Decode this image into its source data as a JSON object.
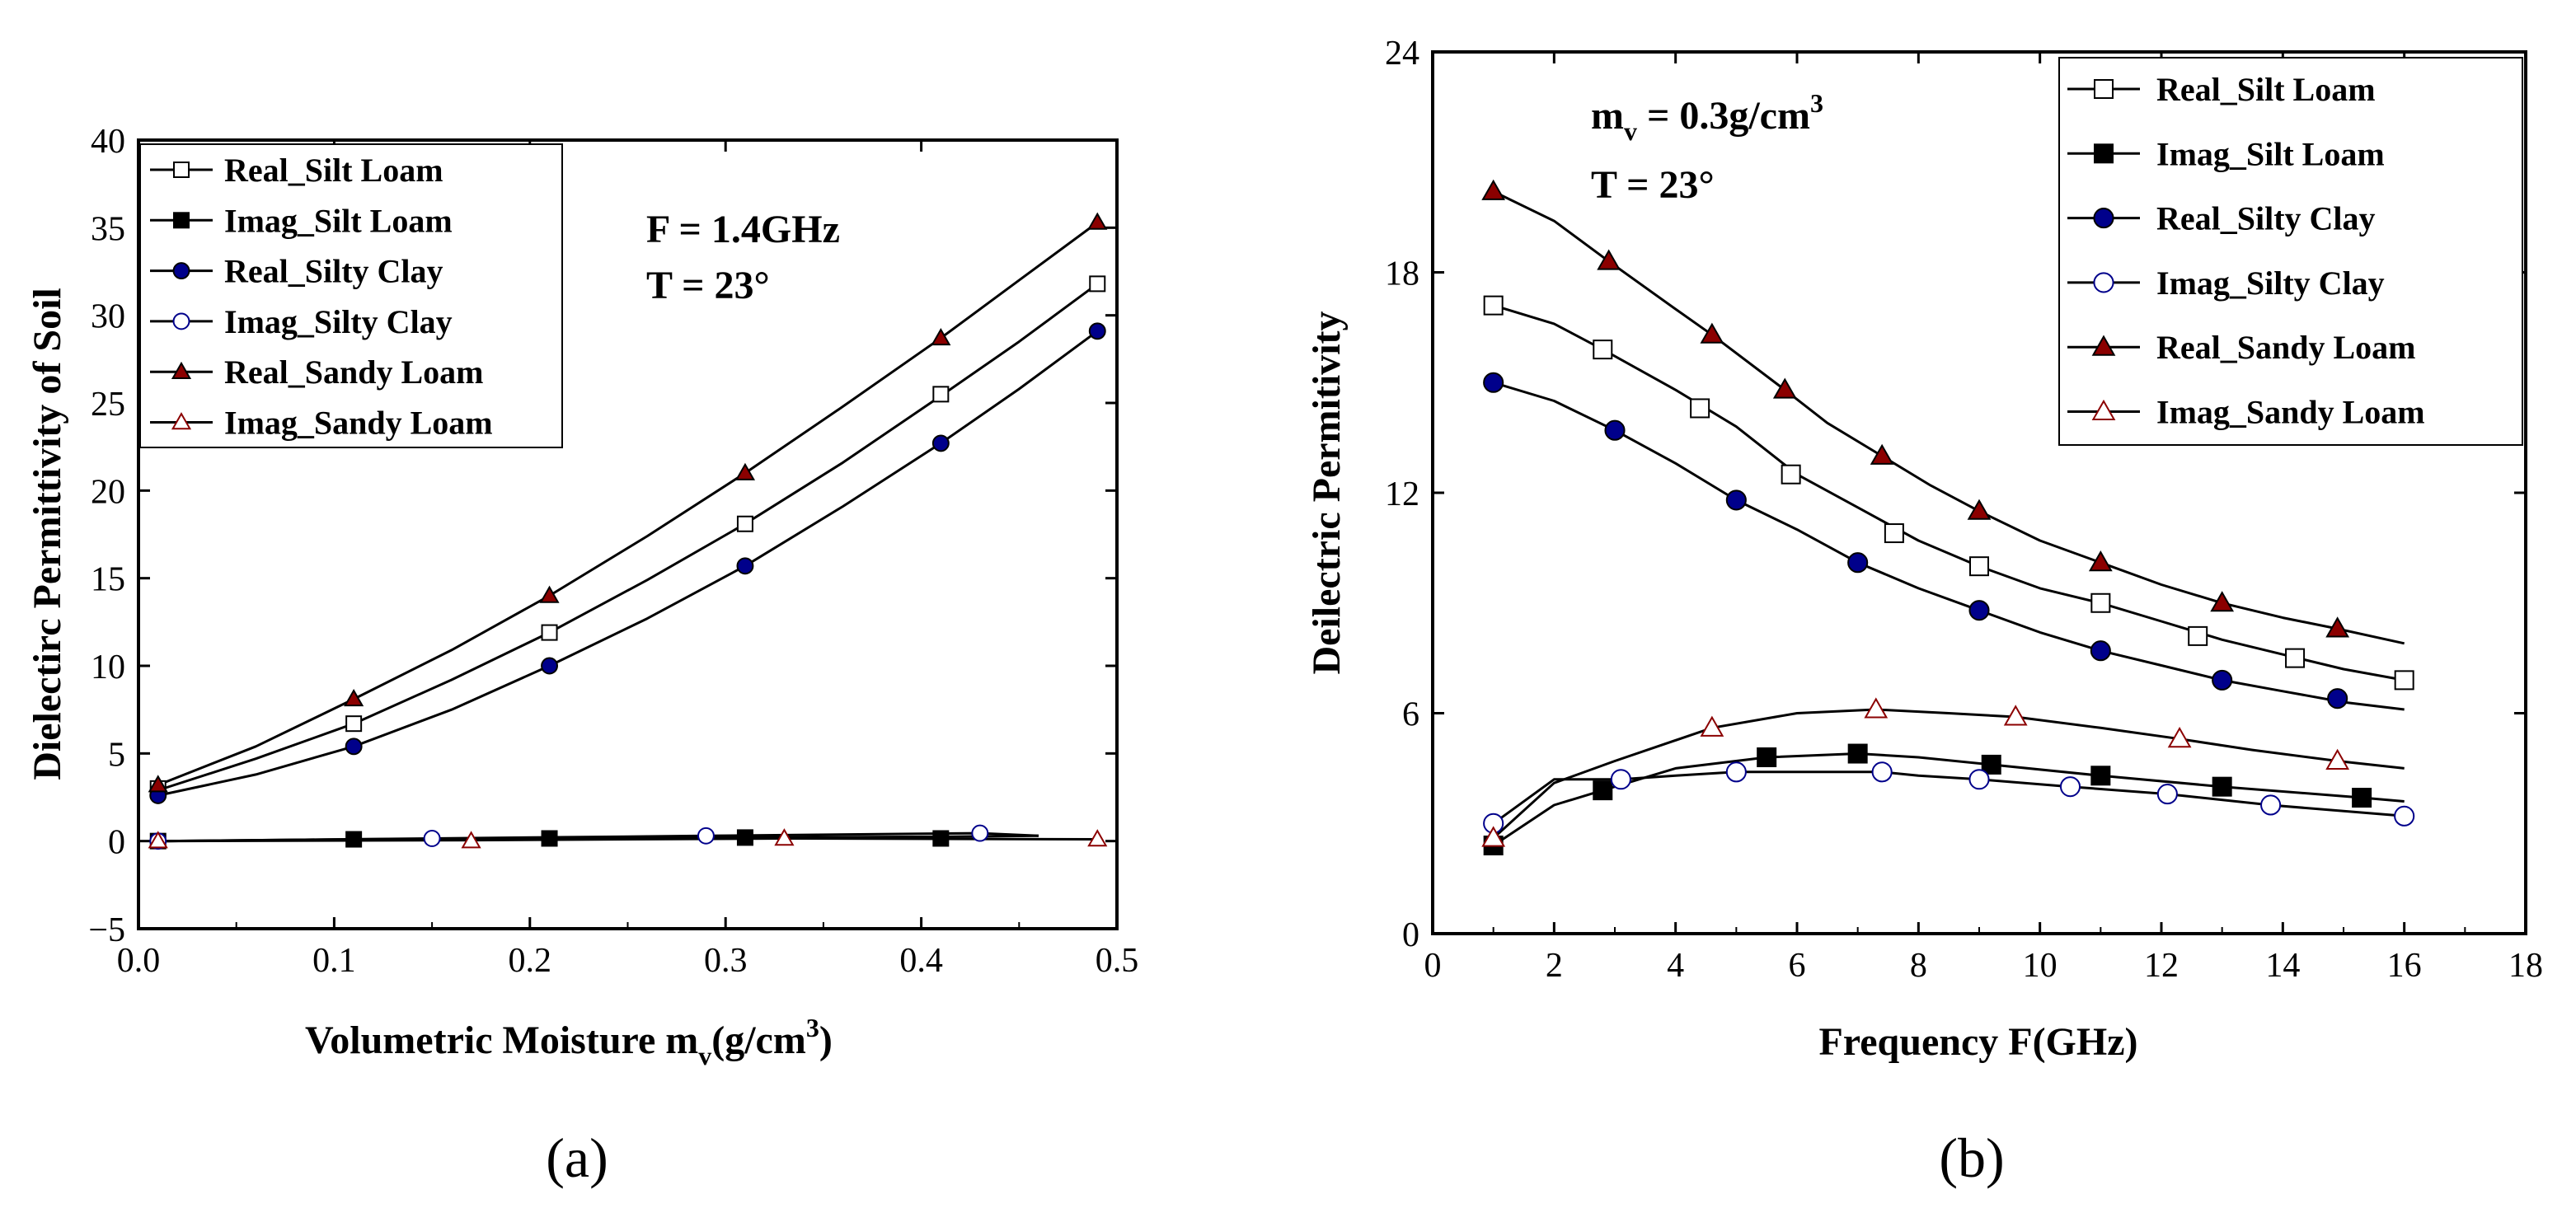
{
  "colors": {
    "dark_red": "#8b0000",
    "dark_blue": "#00008b",
    "black": "#000000",
    "white": "#ffffff"
  },
  "chart_data": [
    {
      "type": "line",
      "panel_label": "(a)",
      "xlabel_main": "Volumetric Moisture m",
      "xlabel_sub": "v",
      "xlabel_tail": "(g/cm",
      "xlabel_sup": "3",
      "xlabel_end": ")",
      "ylabel": "Dielectirc Permittivity of Soil",
      "xlim": [
        0,
        0.5
      ],
      "ylim": [
        -5,
        40
      ],
      "xticks": [
        0.0,
        0.1,
        0.2,
        0.3,
        0.4,
        0.5
      ],
      "xtick_labels": [
        "0.0",
        "0.1",
        "0.2",
        "0.3",
        "0.4",
        "0.5"
      ],
      "yticks": [
        -5,
        0,
        5,
        10,
        15,
        20,
        25,
        30,
        35,
        40
      ],
      "ytick_labels": [
        "−5",
        "0",
        "5",
        "10",
        "15",
        "20",
        "25",
        "30",
        "35",
        "40"
      ],
      "annotations": {
        "line1": "F = 1.4GHz",
        "line2": "T = 23°"
      },
      "legend_position": "top-left",
      "series": [
        {
          "name": "Real_Silt Loam",
          "marker": "square-open",
          "color": "#000000",
          "x": [
            0.01,
            0.11,
            0.21,
            0.31,
            0.41,
            0.49
          ],
          "y": [
            3.0,
            6.7,
            11.9,
            18.1,
            25.5,
            31.8
          ],
          "line_x": [
            0.01,
            0.06,
            0.11,
            0.16,
            0.21,
            0.26,
            0.31,
            0.36,
            0.41,
            0.45,
            0.49
          ],
          "line_y": [
            2.9,
            4.7,
            6.7,
            9.2,
            11.9,
            14.9,
            18.1,
            21.6,
            25.4,
            28.5,
            31.8
          ]
        },
        {
          "name": "Imag_Silt Loam",
          "marker": "square-filled",
          "color": "#000000",
          "x": [
            0.01,
            0.11,
            0.21,
            0.31,
            0.41
          ],
          "y": [
            0.0,
            0.1,
            0.15,
            0.2,
            0.15
          ],
          "line_x": [
            0.01,
            0.11,
            0.21,
            0.31,
            0.41,
            0.46
          ],
          "line_y": [
            0.0,
            0.1,
            0.15,
            0.2,
            0.25,
            0.3
          ]
        },
        {
          "name": "Real_Silty Clay",
          "marker": "circle-filled",
          "color": "#00008b",
          "x": [
            0.01,
            0.11,
            0.21,
            0.31,
            0.41,
            0.49
          ],
          "y": [
            2.6,
            5.4,
            10.0,
            15.7,
            22.7,
            29.1
          ],
          "line_x": [
            0.01,
            0.06,
            0.11,
            0.16,
            0.21,
            0.26,
            0.31,
            0.36,
            0.41,
            0.45,
            0.49
          ],
          "line_y": [
            2.6,
            3.8,
            5.4,
            7.5,
            10.0,
            12.7,
            15.7,
            19.1,
            22.7,
            25.8,
            29.1
          ]
        },
        {
          "name": "Imag_Silty Clay",
          "marker": "circle-open",
          "color": "#00008b",
          "x": [
            0.01,
            0.15,
            0.29,
            0.43
          ],
          "y": [
            0.0,
            0.15,
            0.3,
            0.45
          ],
          "line_x": [
            0.01,
            0.15,
            0.29,
            0.43,
            0.46
          ],
          "line_y": [
            0.0,
            0.15,
            0.3,
            0.45,
            0.3
          ]
        },
        {
          "name": "Real_Sandy Loam",
          "marker": "triangle-filled",
          "color": "#8b0000",
          "x": [
            0.01,
            0.11,
            0.21,
            0.31,
            0.41,
            0.49
          ],
          "y": [
            3.2,
            8.1,
            14.0,
            21.0,
            28.7,
            35.3
          ],
          "line_x": [
            0.01,
            0.06,
            0.11,
            0.16,
            0.21,
            0.26,
            0.31,
            0.36,
            0.41,
            0.45,
            0.49
          ],
          "line_y": [
            3.2,
            5.4,
            8.1,
            10.9,
            14.0,
            17.4,
            21.0,
            24.8,
            28.7,
            32.0,
            35.3
          ]
        },
        {
          "name": "Imag_Sandy Loam",
          "marker": "triangle-open",
          "color": "#8b0000",
          "x": [
            0.01,
            0.17,
            0.33,
            0.49
          ],
          "y": [
            0.0,
            0.0,
            0.15,
            0.1
          ],
          "line_x": [
            0.01,
            0.17,
            0.33,
            0.49
          ],
          "line_y": [
            0.0,
            0.05,
            0.15,
            0.1
          ]
        }
      ]
    },
    {
      "type": "line",
      "panel_label": "(b)",
      "xlabel": "Frequency F(GHz)",
      "ylabel": "Deilectric Permitivity",
      "xlim": [
        0,
        18
      ],
      "ylim": [
        0,
        24
      ],
      "xticks": [
        0,
        2,
        4,
        6,
        8,
        10,
        12,
        14,
        16,
        18
      ],
      "xtick_labels": [
        "0",
        "2",
        "4",
        "6",
        "8",
        "10",
        "12",
        "14",
        "16",
        "18"
      ],
      "yticks": [
        0,
        6,
        12,
        18,
        24
      ],
      "ytick_labels": [
        "0",
        "6",
        "12",
        "18",
        "24"
      ],
      "annotations": {
        "line1_main": "m",
        "line1_sub": "v",
        "line1_tail": " = 0.3g/cm",
        "line1_sup": "3",
        "line2": "T = 23°"
      },
      "legend_position": "top-right",
      "series": [
        {
          "name": "Real_Silt Loam",
          "marker": "square-open",
          "color": "#000000",
          "x": [
            1.0,
            2.8,
            4.4,
            5.9,
            7.6,
            9.0,
            11.0,
            12.6,
            14.2,
            16.0
          ],
          "y": [
            17.1,
            15.9,
            14.3,
            12.5,
            10.9,
            10.0,
            9.0,
            8.1,
            7.5,
            6.9
          ],
          "line_x": [
            1.0,
            2.0,
            2.8,
            4.0,
            5.0,
            6.0,
            7.0,
            8.0,
            9.0,
            10.0,
            11.0,
            12.0,
            13.0,
            14.0,
            15.0,
            16.0
          ],
          "line_y": [
            17.1,
            16.6,
            15.9,
            14.8,
            13.8,
            12.5,
            11.6,
            10.7,
            10.0,
            9.4,
            9.0,
            8.5,
            8.0,
            7.6,
            7.2,
            6.9
          ]
        },
        {
          "name": "Imag_Silt Loam",
          "marker": "square-filled",
          "color": "#000000",
          "x": [
            1.0,
            2.8,
            5.5,
            7.0,
            9.2,
            11.0,
            13.0,
            15.3
          ],
          "y": [
            2.4,
            3.9,
            4.8,
            4.9,
            4.6,
            4.3,
            4.0,
            3.7
          ],
          "line_x": [
            1.0,
            2.0,
            2.8,
            4.0,
            5.5,
            7.0,
            8.0,
            9.2,
            11.0,
            13.0,
            15.3,
            16.0
          ],
          "line_y": [
            2.4,
            3.5,
            3.9,
            4.5,
            4.8,
            4.9,
            4.8,
            4.6,
            4.3,
            4.0,
            3.7,
            3.6
          ]
        },
        {
          "name": "Real_Silty Clay",
          "marker": "circle-filled",
          "color": "#00008b",
          "x": [
            1.0,
            3.0,
            5.0,
            7.0,
            9.0,
            11.0,
            13.0,
            14.9
          ],
          "y": [
            15.0,
            13.7,
            11.8,
            10.1,
            8.8,
            7.7,
            6.9,
            6.4
          ],
          "line_x": [
            1.0,
            2.0,
            3.0,
            4.0,
            5.0,
            6.0,
            7.0,
            8.0,
            9.0,
            10.0,
            11.0,
            12.0,
            13.0,
            14.0,
            15.0,
            16.0
          ],
          "line_y": [
            15.0,
            14.5,
            13.7,
            12.8,
            11.8,
            11.0,
            10.1,
            9.4,
            8.8,
            8.2,
            7.7,
            7.3,
            6.9,
            6.6,
            6.3,
            6.1
          ]
        },
        {
          "name": "Imag_Silty Clay",
          "marker": "circle-open",
          "color": "#00008b",
          "x": [
            1.0,
            3.1,
            5.0,
            7.4,
            9.0,
            10.5,
            12.1,
            13.8,
            16.0
          ],
          "y": [
            3.0,
            4.2,
            4.4,
            4.4,
            4.2,
            4.0,
            3.8,
            3.5,
            3.2
          ],
          "line_x": [
            1.0,
            2.0,
            3.1,
            4.0,
            5.0,
            6.0,
            7.4,
            8.0,
            9.0,
            10.5,
            12.1,
            13.8,
            16.0
          ],
          "line_y": [
            3.0,
            4.2,
            4.2,
            4.3,
            4.4,
            4.4,
            4.4,
            4.3,
            4.2,
            4.0,
            3.8,
            3.5,
            3.2
          ]
        },
        {
          "name": "Real_Sandy Loam",
          "marker": "triangle-filled",
          "color": "#8b0000",
          "x": [
            1.0,
            2.9,
            4.6,
            5.8,
            7.4,
            9.0,
            11.0,
            13.0,
            14.9
          ],
          "y": [
            20.2,
            18.3,
            16.3,
            14.8,
            13.0,
            11.5,
            10.1,
            9.0,
            8.3
          ],
          "line_x": [
            1.0,
            2.0,
            2.9,
            4.0,
            4.6,
            5.8,
            6.5,
            7.4,
            8.2,
            9.0,
            10.0,
            11.0,
            12.0,
            13.0,
            14.0,
            14.9,
            16.0
          ],
          "line_y": [
            20.2,
            19.4,
            18.3,
            17.0,
            16.3,
            14.8,
            13.9,
            13.0,
            12.2,
            11.5,
            10.7,
            10.1,
            9.5,
            9.0,
            8.6,
            8.3,
            7.9
          ]
        },
        {
          "name": "Imag_Sandy Loam",
          "marker": "triangle-open",
          "color": "#8b0000",
          "x": [
            1.0,
            4.6,
            7.3,
            9.6,
            12.3,
            14.9
          ],
          "y": [
            2.6,
            5.6,
            6.1,
            5.9,
            5.3,
            4.7
          ],
          "line_x": [
            1.0,
            2.0,
            3.0,
            4.6,
            6.0,
            7.3,
            8.5,
            9.6,
            11.0,
            12.3,
            13.5,
            14.9,
            16.0
          ],
          "line_y": [
            2.6,
            4.1,
            4.7,
            5.6,
            6.0,
            6.1,
            6.0,
            5.9,
            5.6,
            5.3,
            5.0,
            4.7,
            4.5
          ]
        }
      ]
    }
  ]
}
